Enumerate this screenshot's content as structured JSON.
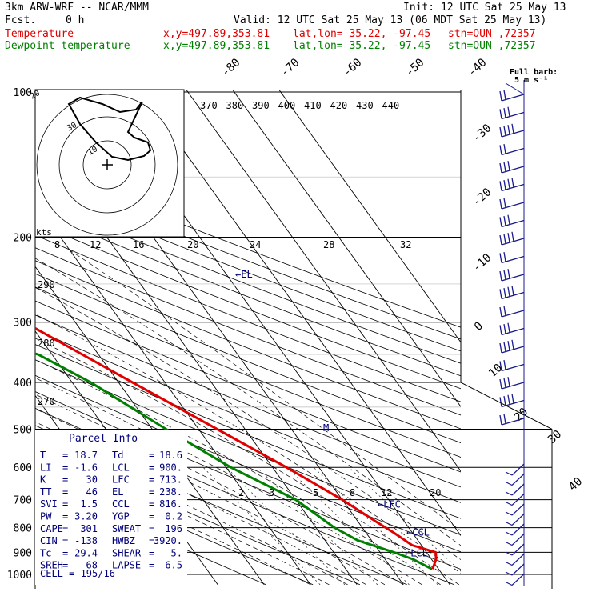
{
  "header": {
    "model": "3km ARW-WRF -- NCAR/MMM",
    "init": "Init: 12 UTC Sat 25 May 13",
    "fcst_label": "Fcst.",
    "fcst_value": "0 h",
    "valid": "Valid: 12 UTC Sat 25 May 13 (06 MDT Sat 25 May 13)",
    "temp_line": {
      "name": "Temperature",
      "xy": "x,y=497.89,353.81",
      "latlon": "lat,lon= 35.22, -97.45",
      "stn": "stn=OUN ,72357"
    },
    "dew_line": {
      "name": "Dewpoint temperature",
      "xy": "x,y=497.89,353.81",
      "latlon": "lat,lon= 35.22, -97.45",
      "stn": "stn=OUN ,72357"
    }
  },
  "colors": {
    "temperature": "#e00000",
    "dewpoint": "#008000",
    "parcel": "#00007a",
    "barb": "#1a1a8c"
  },
  "chart_data": {
    "type": "skew-t",
    "pressure_levels": [
      100,
      200,
      300,
      400,
      500,
      600,
      700,
      800,
      900,
      1000
    ],
    "isotherm_labels": [
      -80,
      -70,
      -60,
      -50,
      -40,
      -30,
      -20,
      -10,
      0,
      10,
      20,
      30,
      40
    ],
    "theta_labels": [
      370,
      380,
      390,
      400,
      410,
      420,
      430,
      440
    ],
    "theta_e_labels": [
      290,
      280,
      270
    ],
    "mixing_ratio_labels": [
      2,
      3,
      5,
      8,
      12,
      20
    ],
    "upper_mixing_labels": [
      8,
      12,
      16,
      20,
      24,
      28,
      32
    ],
    "hodograph": {
      "kts_label": "kts",
      "ring_labels": [
        "20",
        "30",
        "10"
      ]
    },
    "levels_markers": [
      {
        "label": "EL",
        "p": 238
      },
      {
        "label": "M",
        "p": 497
      },
      {
        "label": "LFC",
        "p": 713
      },
      {
        "label": "CCL",
        "p": 816
      },
      {
        "label": "LCL",
        "p": 900
      }
    ],
    "temperature": [
      {
        "p": 975,
        "t": 18.7
      },
      {
        "p": 930,
        "t": 21
      },
      {
        "p": 900,
        "t": 22
      },
      {
        "p": 870,
        "t": 18
      },
      {
        "p": 820,
        "t": 16
      },
      {
        "p": 780,
        "t": 14
      },
      {
        "p": 700,
        "t": 10
      },
      {
        "p": 600,
        "t": 3
      },
      {
        "p": 500,
        "t": -6
      },
      {
        "p": 400,
        "t": -17
      },
      {
        "p": 300,
        "t": -31
      },
      {
        "p": 250,
        "t": -40
      },
      {
        "p": 200,
        "t": -52
      },
      {
        "p": 150,
        "t": -60
      },
      {
        "p": 120,
        "t": -60
      },
      {
        "p": 100,
        "t": -61
      }
    ],
    "dewpoint": [
      {
        "p": 975,
        "t": 18.6
      },
      {
        "p": 930,
        "t": 16
      },
      {
        "p": 900,
        "t": 13
      },
      {
        "p": 850,
        "t": 7
      },
      {
        "p": 800,
        "t": 4
      },
      {
        "p": 700,
        "t": 0
      },
      {
        "p": 600,
        "t": -9
      },
      {
        "p": 500,
        "t": -17
      },
      {
        "p": 400,
        "t": -26
      },
      {
        "p": 350,
        "t": -33
      },
      {
        "p": 330,
        "t": -41
      },
      {
        "p": 300,
        "t": -40
      },
      {
        "p": 250,
        "t": -44
      },
      {
        "p": 200,
        "t": -51
      },
      {
        "p": 150,
        "t": -70
      },
      {
        "p": 120,
        "t": -76
      },
      {
        "p": 100,
        "t": -74
      }
    ],
    "wind_barb_header": "Full barb:",
    "wind_barb_unit": "5 m s⁻¹",
    "wind_barb_count_upper": 19,
    "wind_barb_count_lower": 12
  },
  "parcel": {
    "title": "Parcel Info",
    "rows": [
      [
        "T",
        "=",
        "18.7",
        "Td",
        "=",
        "18.6"
      ],
      [
        "LI",
        "=",
        "-1.6",
        "LCL",
        "=",
        "900."
      ],
      [
        "K",
        "=",
        "30",
        "LFC",
        "=",
        "713."
      ],
      [
        "TT",
        "=",
        "46",
        "EL",
        "=",
        "238."
      ],
      [
        "SVI",
        "=",
        "1.5",
        "CCL",
        "=",
        "816."
      ],
      [
        "PW",
        "=",
        "3.20",
        "YGP",
        "=",
        "0.2"
      ],
      [
        "CAPE",
        "=",
        "301",
        "SWEAT",
        "=",
        "196"
      ],
      [
        "CIN",
        "=",
        "-138",
        "HWBZ",
        "=",
        "3920."
      ],
      [
        "Tc",
        "=",
        "29.4",
        "SHEAR",
        "=",
        "5."
      ],
      [
        "SREH",
        "=",
        "68",
        "LAPSE",
        "=",
        "6.5"
      ]
    ],
    "cell": "CELL = 195/16"
  }
}
